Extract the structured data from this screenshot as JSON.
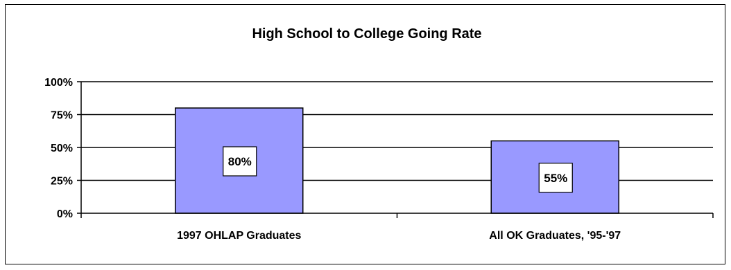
{
  "chart_data": {
    "type": "bar",
    "title": "High School to College Going Rate",
    "categories": [
      "1997 OHLAP Graduates",
      "All OK Graduates, '95-'97"
    ],
    "values": [
      80,
      55
    ],
    "data_labels": [
      "80%",
      "55%"
    ],
    "y_ticks": [
      0,
      25,
      50,
      75,
      100
    ],
    "y_tick_labels": [
      "0%",
      "25%",
      "50%",
      "75%",
      "100%"
    ],
    "ylim": [
      0,
      100
    ],
    "xlabel": "",
    "ylabel": "",
    "grid": true,
    "legend": "none",
    "colors": {
      "bar_fill": "#9999FF",
      "bar_stroke": "#000000",
      "gridline": "#000000"
    }
  }
}
